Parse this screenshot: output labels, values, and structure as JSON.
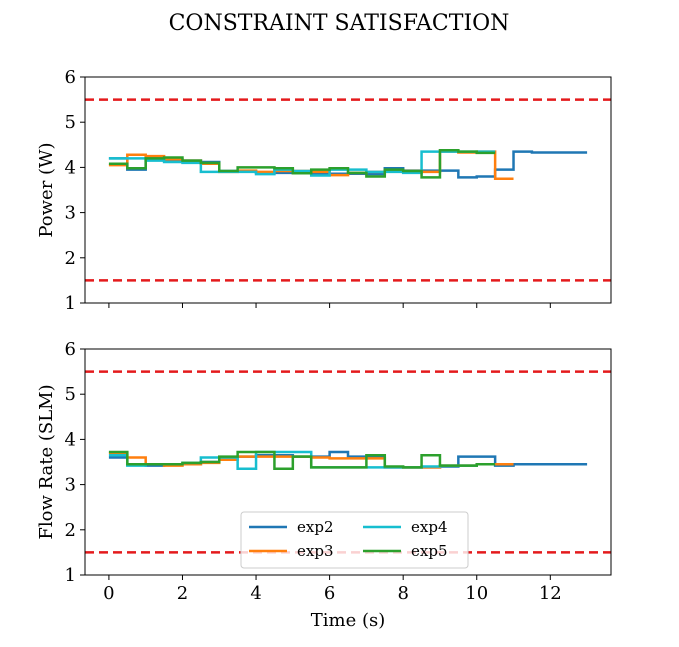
{
  "suptitle": "CONSTRAINT SATISFACTION",
  "colors": {
    "exp2": "#1f77b4",
    "exp3": "#ff7f0e",
    "exp4": "#17becf",
    "exp5": "#2ca02c",
    "limit": "#e41a1c"
  },
  "chart_data": [
    {
      "type": "line",
      "step": "post",
      "ylabel": "Power (W)",
      "xlabel": "",
      "xlim": [
        -0.65,
        13.65
      ],
      "ylim": [
        1,
        6
      ],
      "xticks": [
        0,
        2,
        4,
        6,
        8,
        10,
        12
      ],
      "show_xticklabels": false,
      "yticks": [
        1,
        2,
        3,
        4,
        5,
        6
      ],
      "grid": false,
      "limits": [
        1.5,
        5.5
      ],
      "series": [
        {
          "name": "exp2",
          "color_key": "exp2",
          "x": [
            0,
            0.5,
            1,
            1.5,
            2,
            2.5,
            3,
            3.5,
            4,
            4.5,
            5,
            5.5,
            6,
            6.5,
            7,
            7.5,
            8,
            8.5,
            9,
            9.5,
            10,
            10.5,
            11,
            11.5,
            12,
            12.5,
            13
          ],
          "y": [
            4.2,
            3.95,
            4.2,
            4.15,
            4.15,
            4.12,
            3.92,
            3.92,
            3.88,
            3.88,
            3.88,
            3.86,
            3.86,
            3.86,
            3.85,
            3.98,
            3.93,
            3.93,
            3.93,
            3.78,
            3.8,
            3.95,
            4.35,
            4.33,
            4.33,
            4.33,
            4.33
          ]
        },
        {
          "name": "exp3",
          "color_key": "exp3",
          "x": [
            0,
            0.5,
            1,
            1.5,
            2,
            2.5,
            3,
            3.5,
            4,
            4.5,
            5,
            5.5,
            6,
            6.5,
            7,
            7.5,
            8,
            8.5,
            9,
            9.5,
            10,
            10.5,
            11
          ],
          "y": [
            4.05,
            4.28,
            4.25,
            4.18,
            4.15,
            4.08,
            3.9,
            3.93,
            3.9,
            3.92,
            3.92,
            3.9,
            3.83,
            3.88,
            3.9,
            3.92,
            3.92,
            3.9,
            4.35,
            4.33,
            4.35,
            3.75,
            3.75
          ]
        },
        {
          "name": "exp4",
          "color_key": "exp4",
          "x": [
            0,
            0.5,
            1,
            1.5,
            2,
            2.5,
            3,
            3.5,
            4,
            4.5,
            5,
            5.5,
            6,
            6.5,
            7,
            7.5,
            8,
            8.5,
            9,
            9.5,
            10,
            10.5
          ],
          "y": [
            4.2,
            4.2,
            4.15,
            4.12,
            4.1,
            3.9,
            3.9,
            3.9,
            3.85,
            3.95,
            3.92,
            3.82,
            3.95,
            3.95,
            3.9,
            3.9,
            3.88,
            4.35,
            4.35,
            4.35,
            4.35,
            4.35
          ]
        },
        {
          "name": "exp5",
          "color_key": "exp5",
          "x": [
            0,
            0.5,
            1,
            1.5,
            2,
            2.5,
            3,
            3.5,
            4,
            4.5,
            5,
            5.5,
            6,
            6.5,
            7,
            7.5,
            8,
            8.5,
            9,
            9.5,
            10,
            10.5
          ],
          "y": [
            4.08,
            3.98,
            4.2,
            4.22,
            4.15,
            4.1,
            3.92,
            4.0,
            4.0,
            3.98,
            3.87,
            3.95,
            3.98,
            3.88,
            3.8,
            3.95,
            3.92,
            3.78,
            4.38,
            4.35,
            4.32,
            4.32
          ]
        }
      ]
    },
    {
      "type": "line",
      "step": "post",
      "ylabel": "Flow Rate (SLM)",
      "xlabel": "Time (s)",
      "xlim": [
        -0.65,
        13.65
      ],
      "ylim": [
        1,
        6
      ],
      "xticks": [
        0,
        2,
        4,
        6,
        8,
        10,
        12
      ],
      "show_xticklabels": true,
      "yticks": [
        1,
        2,
        3,
        4,
        5,
        6
      ],
      "grid": false,
      "limits": [
        1.5,
        5.5
      ],
      "legend": {
        "placement": "lower center",
        "ncol": 2,
        "entries": [
          "exp2",
          "exp3",
          "exp4",
          "exp5"
        ]
      },
      "series": [
        {
          "name": "exp2",
          "color_key": "exp2",
          "x": [
            0,
            0.5,
            1,
            1.5,
            2,
            2.5,
            3,
            3.5,
            4,
            4.5,
            5,
            5.5,
            6,
            6.5,
            7,
            7.5,
            8,
            8.5,
            9,
            9.5,
            10,
            10.5,
            11,
            11.5,
            12,
            12.5,
            13
          ],
          "y": [
            3.6,
            3.45,
            3.42,
            3.45,
            3.45,
            3.5,
            3.6,
            3.62,
            3.65,
            3.65,
            3.62,
            3.62,
            3.72,
            3.62,
            3.6,
            3.38,
            3.38,
            3.38,
            3.4,
            3.62,
            3.62,
            3.42,
            3.45,
            3.45,
            3.45,
            3.45,
            3.45
          ]
        },
        {
          "name": "exp3",
          "color_key": "exp3",
          "x": [
            0,
            0.5,
            1,
            1.5,
            2,
            2.5,
            3,
            3.5,
            4,
            4.5,
            5,
            5.5,
            6,
            6.5,
            7,
            7.5,
            8,
            8.5,
            9,
            9.5,
            10,
            10.5,
            11
          ],
          "y": [
            3.7,
            3.6,
            3.45,
            3.42,
            3.45,
            3.48,
            3.55,
            3.62,
            3.62,
            3.62,
            3.62,
            3.6,
            3.58,
            3.58,
            3.58,
            3.38,
            3.38,
            3.38,
            3.42,
            3.42,
            3.45,
            3.45,
            3.45
          ]
        },
        {
          "name": "exp4",
          "color_key": "exp4",
          "x": [
            0,
            0.5,
            1,
            1.5,
            2,
            2.5,
            3,
            3.5,
            4,
            4.5,
            5,
            5.5,
            6,
            6.5,
            7,
            7.5,
            8,
            8.5,
            9,
            9.5,
            10,
            10.5
          ],
          "y": [
            3.65,
            3.42,
            3.45,
            3.45,
            3.48,
            3.6,
            3.6,
            3.35,
            3.72,
            3.72,
            3.72,
            3.38,
            3.38,
            3.38,
            3.38,
            3.38,
            3.38,
            3.4,
            3.42,
            3.42,
            3.45,
            3.45
          ]
        },
        {
          "name": "exp5",
          "color_key": "exp5",
          "x": [
            0,
            0.5,
            1,
            1.5,
            2,
            2.5,
            3,
            3.5,
            4,
            4.5,
            5,
            5.5,
            6,
            6.5,
            7,
            7.5,
            8,
            8.5,
            9,
            9.5,
            10,
            10.5
          ],
          "y": [
            3.72,
            3.45,
            3.45,
            3.45,
            3.48,
            3.5,
            3.62,
            3.72,
            3.72,
            3.35,
            3.62,
            3.38,
            3.38,
            3.38,
            3.65,
            3.4,
            3.38,
            3.65,
            3.42,
            3.42,
            3.45,
            3.45
          ]
        }
      ]
    }
  ]
}
